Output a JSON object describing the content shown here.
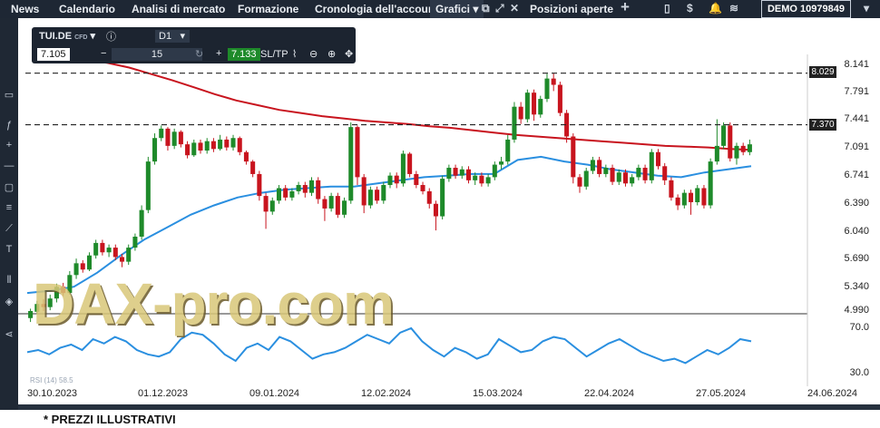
{
  "nav": {
    "tabs": [
      "News",
      "Calendario",
      "Analisi di mercato",
      "Formazione",
      "Cronologia dell'account",
      "Grafici",
      "Posizioni aperte"
    ],
    "account_label": "DEMO",
    "account_number": "10979849"
  },
  "toolbar": {
    "symbol": "TUI.DE",
    "symbol_type": "CFD",
    "timeframe": "D1",
    "bid": "7.105",
    "quantity": "15",
    "ask": "7.133",
    "sltp": "SL/TP"
  },
  "price_axis": [
    "8.141",
    "7.791",
    "7.441",
    "7.091",
    "6.741",
    "6.390",
    "6.040",
    "5.690",
    "5.340",
    "4.990"
  ],
  "rsi_axis": [
    "70.0",
    "30.0"
  ],
  "rsi_label": "RSI (14) 58.5",
  "price_tags": [
    "8.029",
    "7.370"
  ],
  "date_axis": [
    "30.10.2023",
    "01.12.2023",
    "09.01.2024",
    "12.02.2024",
    "15.03.2024",
    "22.04.2024",
    "27.05.2024",
    "24.06.2024"
  ],
  "watermark": "DAX-pro.com",
  "footer_note": "* PREZZI ILLUSTRATIVI",
  "colors": {
    "up": "#1e8a2a",
    "down": "#c8141e",
    "ma_long": "#c8141e",
    "ma_short": "#2a8fe0",
    "rsi": "#2a8fe0"
  },
  "chart_data": {
    "type": "candlestick",
    "price_range": [
      4.99,
      8.141
    ],
    "candles": [
      [
        4.9,
        4.99,
        4.85,
        5.02
      ],
      [
        4.98,
        5.08,
        4.95,
        5.12
      ],
      [
        5.08,
        5.04,
        4.99,
        5.14
      ],
      [
        5.04,
        5.15,
        5.0,
        5.2
      ],
      [
        5.15,
        5.3,
        5.1,
        5.34
      ],
      [
        5.3,
        5.22,
        5.18,
        5.35
      ],
      [
        5.22,
        5.45,
        5.2,
        5.5
      ],
      [
        5.45,
        5.6,
        5.4,
        5.66
      ],
      [
        5.6,
        5.52,
        5.48,
        5.64
      ],
      [
        5.52,
        5.7,
        5.5,
        5.74
      ],
      [
        5.7,
        5.86,
        5.66,
        5.9
      ],
      [
        5.86,
        5.74,
        5.7,
        5.9
      ],
      [
        5.74,
        5.8,
        5.68,
        5.84
      ],
      [
        5.8,
        5.68,
        5.64,
        5.84
      ],
      [
        5.68,
        5.62,
        5.55,
        5.72
      ],
      [
        5.62,
        5.8,
        5.58,
        5.84
      ],
      [
        5.8,
        5.94,
        5.76,
        5.98
      ],
      [
        5.94,
        6.28,
        5.9,
        6.34
      ],
      [
        6.28,
        6.9,
        6.24,
        6.96
      ],
      [
        6.9,
        7.2,
        6.86,
        7.26
      ],
      [
        7.2,
        7.32,
        7.16,
        7.36
      ],
      [
        7.32,
        7.1,
        7.04,
        7.34
      ],
      [
        7.1,
        7.28,
        7.06,
        7.32
      ],
      [
        7.28,
        7.12,
        7.08,
        7.3
      ],
      [
        7.12,
        6.98,
        6.94,
        7.16
      ],
      [
        6.98,
        7.14,
        6.96,
        7.18
      ],
      [
        7.14,
        7.04,
        7.0,
        7.18
      ],
      [
        7.04,
        7.16,
        7.0,
        7.2
      ],
      [
        7.16,
        7.06,
        7.02,
        7.2
      ],
      [
        7.06,
        7.18,
        7.04,
        7.24
      ],
      [
        7.18,
        7.08,
        7.04,
        7.22
      ],
      [
        7.08,
        7.2,
        7.04,
        7.24
      ],
      [
        7.2,
        7.02,
        6.98,
        7.22
      ],
      [
        7.02,
        6.9,
        6.86,
        7.04
      ],
      [
        6.9,
        6.74,
        6.7,
        6.92
      ],
      [
        6.74,
        6.46,
        6.4,
        6.78
      ],
      [
        6.46,
        6.26,
        6.04,
        6.5
      ],
      [
        6.26,
        6.4,
        6.22,
        6.44
      ],
      [
        6.4,
        6.56,
        6.36,
        6.6
      ],
      [
        6.56,
        6.44,
        6.4,
        6.6
      ],
      [
        6.44,
        6.52,
        6.4,
        6.56
      ],
      [
        6.52,
        6.6,
        6.48,
        6.64
      ],
      [
        6.6,
        6.5,
        6.44,
        6.64
      ],
      [
        6.5,
        6.66,
        6.46,
        6.7
      ],
      [
        6.66,
        6.42,
        6.36,
        6.7
      ],
      [
        6.42,
        6.3,
        6.14,
        6.46
      ],
      [
        6.3,
        6.46,
        6.26,
        6.5
      ],
      [
        6.46,
        6.22,
        6.18,
        6.5
      ],
      [
        6.22,
        6.4,
        6.18,
        6.44
      ],
      [
        6.4,
        7.34,
        6.36,
        7.4
      ],
      [
        7.34,
        6.7,
        6.6,
        7.36
      ],
      [
        6.7,
        6.34,
        6.24,
        6.74
      ],
      [
        6.34,
        6.54,
        6.3,
        6.58
      ],
      [
        6.54,
        6.4,
        6.36,
        6.58
      ],
      [
        6.4,
        6.6,
        6.36,
        6.64
      ],
      [
        6.6,
        6.72,
        6.56,
        6.76
      ],
      [
        6.72,
        6.62,
        6.56,
        6.76
      ],
      [
        6.62,
        7.0,
        6.58,
        7.04
      ],
      [
        7.0,
        6.74,
        6.7,
        7.02
      ],
      [
        6.74,
        6.6,
        6.56,
        6.78
      ],
      [
        6.6,
        6.52,
        6.48,
        6.64
      ],
      [
        6.52,
        6.36,
        6.3,
        6.56
      ],
      [
        6.36,
        6.2,
        6.02,
        6.4
      ],
      [
        6.2,
        6.68,
        6.16,
        6.72
      ],
      [
        6.68,
        6.82,
        6.64,
        6.86
      ],
      [
        6.82,
        6.72,
        6.68,
        6.86
      ],
      [
        6.72,
        6.8,
        6.68,
        6.84
      ],
      [
        6.8,
        6.66,
        6.62,
        6.84
      ],
      [
        6.66,
        6.72,
        6.6,
        6.76
      ],
      [
        6.72,
        6.62,
        6.58,
        6.76
      ],
      [
        6.62,
        6.7,
        6.58,
        6.74
      ],
      [
        6.7,
        6.86,
        6.66,
        6.9
      ],
      [
        6.86,
        6.9,
        6.8,
        6.96
      ],
      [
        6.9,
        7.18,
        6.86,
        7.24
      ],
      [
        7.18,
        7.6,
        7.14,
        7.66
      ],
      [
        7.6,
        7.44,
        7.38,
        7.66
      ],
      [
        7.44,
        7.78,
        7.4,
        7.82
      ],
      [
        7.78,
        7.5,
        7.42,
        7.82
      ],
      [
        7.5,
        7.7,
        7.46,
        7.74
      ],
      [
        7.7,
        7.96,
        7.66,
        8.02
      ],
      [
        7.96,
        7.88,
        7.8,
        8.03
      ],
      [
        7.88,
        7.52,
        7.48,
        7.92
      ],
      [
        7.52,
        7.22,
        7.14,
        7.56
      ],
      [
        7.22,
        6.7,
        6.62,
        7.26
      ],
      [
        6.7,
        6.58,
        6.5,
        6.74
      ],
      [
        6.58,
        6.78,
        6.54,
        6.82
      ],
      [
        6.78,
        6.92,
        6.74,
        6.96
      ],
      [
        6.92,
        6.74,
        6.7,
        6.96
      ],
      [
        6.74,
        6.82,
        6.7,
        6.86
      ],
      [
        6.82,
        6.64,
        6.6,
        6.86
      ],
      [
        6.64,
        6.76,
        6.6,
        6.8
      ],
      [
        6.76,
        6.62,
        6.58,
        6.8
      ],
      [
        6.62,
        6.7,
        6.58,
        6.74
      ],
      [
        6.7,
        6.82,
        6.66,
        6.86
      ],
      [
        6.82,
        6.66,
        6.62,
        6.86
      ],
      [
        6.66,
        7.02,
        6.62,
        7.06
      ],
      [
        7.02,
        6.84,
        6.8,
        7.06
      ],
      [
        6.84,
        6.66,
        6.6,
        6.88
      ],
      [
        6.66,
        6.44,
        6.4,
        6.7
      ],
      [
        6.44,
        6.34,
        6.28,
        6.48
      ],
      [
        6.34,
        6.5,
        6.3,
        6.54
      ],
      [
        6.5,
        6.38,
        6.22,
        6.54
      ],
      [
        6.38,
        6.56,
        6.34,
        6.6
      ],
      [
        6.56,
        6.34,
        6.3,
        6.6
      ],
      [
        6.34,
        6.9,
        6.3,
        6.94
      ],
      [
        6.9,
        7.1,
        6.86,
        7.44
      ],
      [
        7.1,
        7.36,
        7.06,
        7.4
      ],
      [
        7.36,
        6.94,
        6.9,
        7.4
      ],
      [
        6.94,
        7.1,
        6.86,
        7.14
      ],
      [
        7.1,
        7.02,
        6.98,
        7.14
      ],
      [
        7.02,
        7.12,
        6.98,
        7.18
      ]
    ],
    "ma_long": [
      8.2,
      8.16,
      8.1,
      8.02,
      7.94,
      7.85,
      7.76,
      7.68,
      7.62,
      7.56,
      7.52,
      7.48,
      7.45,
      7.42,
      7.4,
      7.38,
      7.35,
      7.33,
      7.3,
      7.27,
      7.24,
      7.22,
      7.2,
      7.18,
      7.16,
      7.14,
      7.12,
      7.1,
      7.09,
      7.08,
      7.06,
      7.05
    ],
    "ma_short": [
      5.22,
      5.25,
      5.3,
      5.48,
      5.7,
      5.9,
      6.06,
      6.22,
      6.34,
      6.44,
      6.5,
      6.54,
      6.56,
      6.58,
      6.58,
      6.62,
      6.66,
      6.7,
      6.72,
      6.74,
      6.74,
      6.92,
      6.96,
      6.9,
      6.86,
      6.8,
      6.76,
      6.72,
      6.7,
      6.76,
      6.8,
      6.84
    ],
    "rsi_range": [
      30,
      70
    ],
    "rsi": [
      48,
      50,
      46,
      52,
      55,
      50,
      60,
      56,
      62,
      58,
      50,
      46,
      44,
      48,
      60,
      66,
      64,
      56,
      46,
      40,
      52,
      56,
      50,
      62,
      58,
      50,
      42,
      46,
      48,
      52,
      58,
      64,
      60,
      56,
      66,
      70,
      58,
      50,
      44,
      52,
      48,
      42,
      46,
      60,
      54,
      48,
      50,
      58,
      62,
      60,
      52,
      44,
      50,
      56,
      60,
      54,
      48,
      44,
      40,
      42,
      38,
      44,
      50,
      46,
      52,
      60,
      58
    ],
    "price_tags": [
      8.029,
      7.37
    ]
  }
}
